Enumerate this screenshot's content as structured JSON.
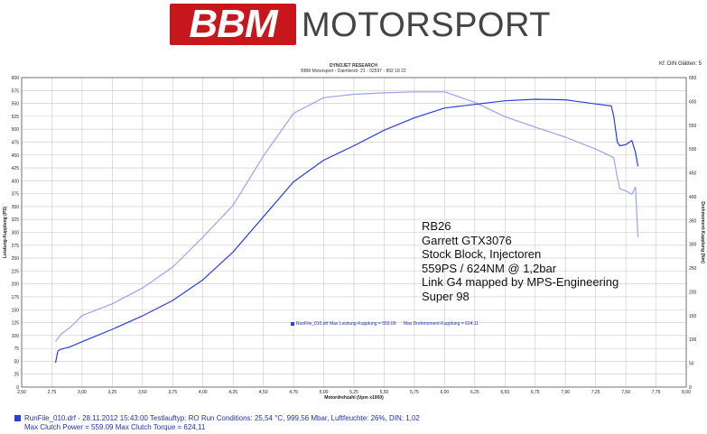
{
  "header": {
    "logo_mark": "BBM",
    "logo_word": "MOTORSPORT",
    "title": "DYNOJET RESEARCH",
    "subtitle": "BBM Motorsport - Daimlerstr. 21 - 02597 - 892 18 22",
    "corner": "Kf: DIN  Glätten: 5"
  },
  "annotation": {
    "lines": [
      "RB26",
      "Garrett GTX3076",
      "Stock Block, Injectoren",
      "559PS / 624NM @ 1,2bar",
      "Link G4 mapped by MPS-Engineering",
      "Super 98"
    ]
  },
  "legend": {
    "text": "RunFile_010.drf Max Leistung-Kupplung = 559,09",
    "text2": "Max Drehmoment-Kupplung = 624,11"
  },
  "footer": {
    "line1": "RunFile_010.drf - 28.11.2012 15:43:00  Testlauftyp: RO  Run Conditions: 25,54 °C, 999,56 Mbar,  Luftfeuchte: 26%, DIN: 1,02",
    "line2": "Max Clutch Power = 559.09  Max Clutch Torque = 624,11"
  },
  "colors": {
    "power": "#2a3fd6",
    "torque": "#9aa4ee",
    "grid": "#c8c8c8",
    "frame": "#555555",
    "logo_red": "#c8161d"
  },
  "chart_data": {
    "type": "line",
    "xlabel": "Motordrehzahl (Upm x1000)",
    "ylabel_left": "Leistung-Kupplung (PS)",
    "ylabel_right": "Drehmoment-Kupplung (Nm)",
    "xlim": [
      2.5,
      8.0
    ],
    "ylim_left": [
      0,
      600
    ],
    "ylim_right": [
      0,
      650
    ],
    "x_ticks": [
      "2,50",
      "2,75",
      "3,00",
      "3,25",
      "3,50",
      "3,75",
      "4,00",
      "4,25",
      "4,50",
      "4,75",
      "5,00",
      "5,25",
      "5,50",
      "5,75",
      "6,00",
      "6,25",
      "6,50",
      "6,75",
      "7,00",
      "7,25",
      "7,50",
      "7,75",
      "8,00"
    ],
    "y_ticks_left": [
      "0",
      "25",
      "50",
      "75",
      "100",
      "125",
      "150",
      "175",
      "200",
      "225",
      "250",
      "275",
      "300",
      "325",
      "350",
      "375",
      "400",
      "425",
      "450",
      "475",
      "500",
      "525",
      "550",
      "575",
      "600"
    ],
    "y_ticks_right": [
      "0",
      "50",
      "100",
      "150",
      "200",
      "250",
      "300",
      "350",
      "400",
      "450",
      "500",
      "550",
      "600",
      "650"
    ],
    "grid": true,
    "series": [
      {
        "name": "Leistung-Kupplung",
        "axis": "left",
        "x": [
          2.78,
          2.8,
          2.82,
          2.9,
          3.0,
          3.25,
          3.5,
          3.75,
          4.0,
          4.25,
          4.5,
          4.75,
          5.0,
          5.25,
          5.5,
          5.75,
          6.0,
          6.25,
          6.5,
          6.75,
          7.0,
          7.25,
          7.38,
          7.4,
          7.43,
          7.45,
          7.5,
          7.55,
          7.58,
          7.6
        ],
        "y": [
          47,
          70,
          73,
          78,
          88,
          112,
          138,
          168,
          208,
          262,
          330,
          398,
          440,
          468,
          498,
          522,
          541,
          548,
          555,
          558,
          557,
          549,
          545,
          525,
          475,
          468,
          470,
          478,
          455,
          428
        ]
      },
      {
        "name": "Drehmoment-Kupplung",
        "axis": "right",
        "x": [
          2.78,
          2.8,
          2.82,
          2.9,
          3.0,
          3.25,
          3.5,
          3.75,
          4.0,
          4.25,
          4.5,
          4.75,
          5.0,
          5.25,
          5.5,
          5.75,
          6.0,
          6.25,
          6.5,
          6.75,
          7.0,
          7.25,
          7.4,
          7.43,
          7.45,
          7.5,
          7.55,
          7.58,
          7.6
        ],
        "y": [
          96,
          102,
          110,
          125,
          150,
          175,
          208,
          252,
          315,
          382,
          485,
          575,
          608,
          615,
          618,
          620,
          620,
          598,
          568,
          546,
          525,
          500,
          482,
          440,
          417,
          412,
          405,
          420,
          315
        ]
      }
    ]
  }
}
